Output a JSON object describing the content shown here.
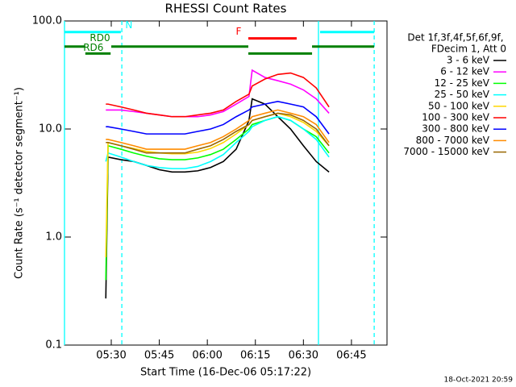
{
  "chart_data": {
    "type": "line",
    "title": "RHESSI Count Rates",
    "xlabel": "Start Time (16-Dec-06 05:17:22)",
    "ylabel": "Count Rate (s⁻¹ detector segment⁻¹)",
    "legend_header": [
      "Det 1f,3f,4f,5f,6f,9f,",
      "FDecim 1, Att 0"
    ],
    "footer": "18-Oct-2021 20:59",
    "ylog": true,
    "xlim": [
      15.4,
      116.1
    ],
    "ylim": [
      0.1,
      100
    ],
    "xticks": [
      {
        "value": 30,
        "label": "05:30"
      },
      {
        "value": 45,
        "label": "05:45"
      },
      {
        "value": 60,
        "label": "06:00"
      },
      {
        "value": 75,
        "label": "06:15"
      },
      {
        "value": 90,
        "label": "06:30"
      },
      {
        "value": 105,
        "label": "06:45"
      }
    ],
    "yticks": [
      0.1,
      {
        "value": 1,
        "label": "1.0"
      },
      {
        "value": 10,
        "label": "10.0"
      },
      {
        "value": 100,
        "label": "100.0"
      }
    ],
    "x": [
      28.3,
      29,
      33,
      37,
      41,
      45,
      49,
      53,
      57,
      61,
      65,
      69,
      73,
      74,
      78,
      82,
      86,
      90,
      94,
      98
    ],
    "series": [
      {
        "name": "3 - 6 keV",
        "color": "#000000",
        "values": [
          0.27,
          5.5,
          5.2,
          5.0,
          4.6,
          4.2,
          4.0,
          4.0,
          4.1,
          4.4,
          5.0,
          6.5,
          12,
          19,
          17,
          13,
          10,
          7,
          5,
          4
        ]
      },
      {
        "name": "6 - 12 keV",
        "color": "#ff00ff",
        "values": [
          15,
          15,
          15,
          14.5,
          14,
          13.5,
          13,
          13,
          13,
          13.5,
          14.5,
          17,
          20,
          35,
          30,
          28,
          26,
          23,
          19,
          14
        ]
      },
      {
        "name": "12 - 25 keV",
        "color": "#00ff00",
        "values": [
          0.4,
          7,
          6.5,
          6,
          5.6,
          5.3,
          5.2,
          5.2,
          5.4,
          5.8,
          6.5,
          8,
          10,
          11,
          12,
          13,
          12,
          10,
          8.5,
          6
        ]
      },
      {
        "name": "25 - 50 keV",
        "color": "#00ffff",
        "values": [
          5,
          6,
          5.5,
          5,
          4.6,
          4.4,
          4.3,
          4.3,
          4.5,
          5,
          5.8,
          7.5,
          9.5,
          10.5,
          12,
          13,
          12,
          10,
          8,
          5.5
        ]
      },
      {
        "name": "50 - 100 keV",
        "color": "#ffd700",
        "values": [
          0.65,
          7.5,
          7,
          6.6,
          6.2,
          6,
          5.9,
          5.9,
          6.1,
          6.6,
          7.5,
          9,
          11,
          12,
          13,
          14,
          13,
          11.5,
          9.5,
          7
        ]
      },
      {
        "name": "100 - 300 keV",
        "color": "#ff0000",
        "values": [
          17,
          17,
          16,
          15,
          14,
          13.5,
          13,
          13,
          13.5,
          14,
          15,
          18,
          21,
          25,
          29,
          32,
          33,
          30,
          24,
          16
        ]
      },
      {
        "name": "300 - 800 keV",
        "color": "#0000ff",
        "values": [
          10.5,
          10.5,
          10,
          9.5,
          9,
          9,
          9,
          9,
          9.5,
          10,
          11,
          13,
          15,
          16,
          17,
          18,
          17,
          16,
          13,
          9
        ]
      },
      {
        "name": "800 - 7000 keV",
        "color": "#ff8c00",
        "values": [
          8,
          8,
          7.5,
          7,
          6.5,
          6.5,
          6.5,
          6.5,
          7,
          7.5,
          8.5,
          10,
          12,
          13,
          14,
          15,
          14,
          13,
          11,
          7.5
        ]
      },
      {
        "name": "7000 - 15000 keV",
        "color": "#996600",
        "values": [
          7.5,
          7.5,
          7,
          6.5,
          6,
          6,
          6,
          6,
          6.5,
          7,
          8,
          9.5,
          11,
          12,
          13,
          14,
          13.5,
          12,
          10,
          7
        ]
      }
    ],
    "state_bars": [
      {
        "label": "N",
        "color": "#00ffff",
        "level": 79,
        "segments": [
          [
            15.4,
            33.0
          ],
          [
            95.2,
            112.1
          ]
        ]
      },
      {
        "label": "RD0",
        "color": "#008000",
        "level": 58,
        "segments": [
          [
            15.4,
            21.9
          ],
          [
            30.0,
            72.8
          ],
          [
            92.7,
            112.1
          ]
        ]
      },
      {
        "label": "RD6",
        "color": "#008000",
        "level": 50,
        "segments": [
          [
            21.9,
            29.8
          ],
          [
            72.8,
            92.7
          ]
        ]
      },
      {
        "label": "F",
        "color": "#ff0000",
        "level": 69,
        "segments": [
          [
            72.8,
            87.9
          ]
        ]
      }
    ],
    "vlines": [
      {
        "x": 15.4,
        "color": "#00ffff",
        "dashed": false
      },
      {
        "x": 33.3,
        "color": "#00ffff",
        "dashed": true
      },
      {
        "x": 94.7,
        "color": "#00ffff",
        "dashed": false
      },
      {
        "x": 112.1,
        "color": "#00ffff",
        "dashed": true
      }
    ]
  }
}
